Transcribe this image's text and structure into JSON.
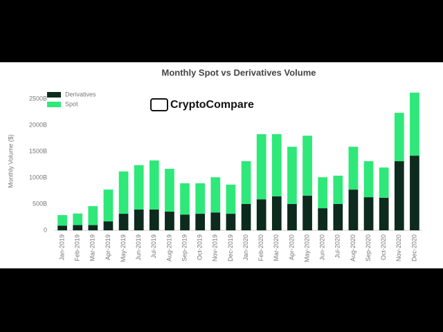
{
  "chart_data": {
    "type": "stacked_bar",
    "title": "Monthly Spot vs Derivatives Volume",
    "logo": "CryptoCompare",
    "y_label": "Monthly Volume ($)",
    "categories": [
      "Jan-2019",
      "Feb-2019",
      "Mar-2019",
      "Apr-2019",
      "May-2019",
      "Jun-2019",
      "Jul-2019",
      "Aug-2019",
      "Sep-2019",
      "Oct-2019",
      "Nov-2019",
      "Dec-2019",
      "Jan-2020",
      "Feb-2020",
      "Mar-2020",
      "Apr-2020",
      "May-2020",
      "Jun-2020",
      "Jul-2020",
      "Aug-2020",
      "Sep-2020",
      "Oct-2020",
      "Nov-2020",
      "Dec-2020"
    ],
    "series": [
      {
        "name": "Derivatives",
        "color": "#0d2a1e",
        "values": [
          90,
          100,
          100,
          170,
          315,
          395,
          395,
          355,
          300,
          315,
          340,
          315,
          500,
          590,
          645,
          500,
          660,
          420,
          500,
          775,
          630,
          620,
          1315,
          1420
        ]
      },
      {
        "name": "Spot",
        "color": "#2ee87a",
        "values": [
          200,
          220,
          360,
          605,
          805,
          845,
          935,
          815,
          595,
          580,
          670,
          555,
          815,
          1240,
          1185,
          1090,
          1140,
          590,
          540,
          815,
          685,
          575,
          920,
          1200
        ]
      }
    ],
    "ylim": [
      0,
      2500
    ],
    "yticks": [
      0,
      {
        "value": 500,
        "label": "500B"
      },
      {
        "value": 1000,
        "label": "1000B"
      },
      {
        "value": 1500,
        "label": "1500B"
      },
      {
        "value": 2000,
        "label": "2000B"
      },
      {
        "value": 2500,
        "label": "2500B"
      }
    ],
    "grid": false,
    "legend": "top-left"
  }
}
